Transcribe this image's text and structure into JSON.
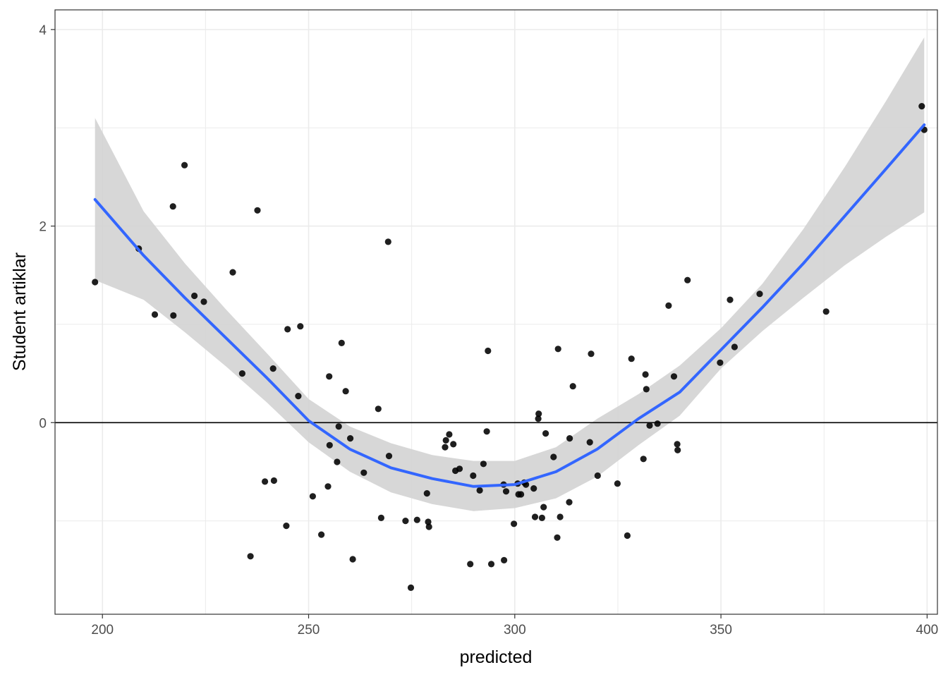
{
  "chart_data": {
    "type": "scatter",
    "title": "",
    "xlabel": "predicted",
    "ylabel": "Student artiklar",
    "xlim": [
      188.5,
      402.5
    ],
    "ylim": [
      -1.95,
      4.2
    ],
    "x_ticks": [
      200,
      250,
      300,
      350,
      400
    ],
    "y_ticks": [
      0,
      2,
      4
    ],
    "x_tick_labels": [
      "200",
      "250",
      "300",
      "350",
      "400"
    ],
    "y_tick_labels": [
      "0",
      "2",
      "4"
    ],
    "grid": true,
    "reference_line_y": 0,
    "colors": {
      "points": "#000000",
      "smooth_line": "#3366FF",
      "confidence_band": "#d3d3d3",
      "grid": "#ebebeb",
      "panel_border": "#333333",
      "reference_line": "#000000"
    },
    "points": [
      {
        "x": 198.2,
        "y": 1.43
      },
      {
        "x": 208.8,
        "y": 1.77
      },
      {
        "x": 212.7,
        "y": 1.1
      },
      {
        "x": 217.1,
        "y": 2.2
      },
      {
        "x": 217.2,
        "y": 1.09
      },
      {
        "x": 219.9,
        "y": 2.62
      },
      {
        "x": 222.3,
        "y": 1.29
      },
      {
        "x": 224.6,
        "y": 1.23
      },
      {
        "x": 231.6,
        "y": 1.53
      },
      {
        "x": 233.9,
        "y": 0.5
      },
      {
        "x": 235.9,
        "y": -1.36
      },
      {
        "x": 237.6,
        "y": 2.16
      },
      {
        "x": 239.4,
        "y": -0.6
      },
      {
        "x": 241.4,
        "y": 0.55
      },
      {
        "x": 241.6,
        "y": -0.59
      },
      {
        "x": 244.6,
        "y": -1.05
      },
      {
        "x": 244.9,
        "y": 0.95
      },
      {
        "x": 247.5,
        "y": 0.27
      },
      {
        "x": 248.0,
        "y": 0.98
      },
      {
        "x": 251.0,
        "y": -0.75
      },
      {
        "x": 253.1,
        "y": -1.14
      },
      {
        "x": 254.7,
        "y": -0.65
      },
      {
        "x": 255.0,
        "y": 0.47
      },
      {
        "x": 255.1,
        "y": -0.23
      },
      {
        "x": 256.9,
        "y": -0.4
      },
      {
        "x": 257.3,
        "y": -0.04
      },
      {
        "x": 258.0,
        "y": 0.81
      },
      {
        "x": 259.0,
        "y": 0.32
      },
      {
        "x": 260.1,
        "y": -0.16
      },
      {
        "x": 260.7,
        "y": -1.39
      },
      {
        "x": 263.4,
        "y": -0.51
      },
      {
        "x": 266.9,
        "y": 0.14
      },
      {
        "x": 267.6,
        "y": -0.97
      },
      {
        "x": 269.3,
        "y": 1.84
      },
      {
        "x": 269.5,
        "y": -0.34
      },
      {
        "x": 273.5,
        "y": -1.0
      },
      {
        "x": 274.8,
        "y": -1.68
      },
      {
        "x": 276.3,
        "y": -0.99
      },
      {
        "x": 278.7,
        "y": -0.72
      },
      {
        "x": 279.0,
        "y": -1.01
      },
      {
        "x": 279.2,
        "y": -1.06
      },
      {
        "x": 283.1,
        "y": -0.25
      },
      {
        "x": 283.3,
        "y": -0.18
      },
      {
        "x": 284.1,
        "y": -0.12
      },
      {
        "x": 285.1,
        "y": -0.22
      },
      {
        "x": 285.6,
        "y": -0.49
      },
      {
        "x": 286.6,
        "y": -0.47
      },
      {
        "x": 289.2,
        "y": -1.44
      },
      {
        "x": 289.9,
        "y": -0.54
      },
      {
        "x": 291.5,
        "y": -0.69
      },
      {
        "x": 292.4,
        "y": -0.42
      },
      {
        "x": 293.2,
        "y": -0.09
      },
      {
        "x": 293.5,
        "y": 0.73
      },
      {
        "x": 294.3,
        "y": -1.44
      },
      {
        "x": 297.3,
        "y": -0.63
      },
      {
        "x": 297.4,
        "y": -1.4
      },
      {
        "x": 297.9,
        "y": -0.7
      },
      {
        "x": 299.8,
        "y": -1.03
      },
      {
        "x": 300.7,
        "y": -0.62
      },
      {
        "x": 300.9,
        "y": -0.73
      },
      {
        "x": 301.5,
        "y": -0.73
      },
      {
        "x": 302.3,
        "y": -0.61
      },
      {
        "x": 302.7,
        "y": -0.63
      },
      {
        "x": 304.6,
        "y": -0.67
      },
      {
        "x": 304.9,
        "y": -0.96
      },
      {
        "x": 305.7,
        "y": 0.04
      },
      {
        "x": 305.8,
        "y": 0.09
      },
      {
        "x": 306.6,
        "y": -0.97
      },
      {
        "x": 307.0,
        "y": -0.86
      },
      {
        "x": 307.5,
        "y": -0.11
      },
      {
        "x": 309.4,
        "y": -0.35
      },
      {
        "x": 310.3,
        "y": -1.17
      },
      {
        "x": 310.5,
        "y": 0.75
      },
      {
        "x": 311.0,
        "y": -0.96
      },
      {
        "x": 313.2,
        "y": -0.81
      },
      {
        "x": 313.3,
        "y": -0.16
      },
      {
        "x": 314.1,
        "y": 0.37
      },
      {
        "x": 318.2,
        "y": -0.2
      },
      {
        "x": 318.5,
        "y": 0.7
      },
      {
        "x": 320.1,
        "y": -0.54
      },
      {
        "x": 324.9,
        "y": -0.62
      },
      {
        "x": 327.3,
        "y": -1.15
      },
      {
        "x": 328.3,
        "y": 0.65
      },
      {
        "x": 331.2,
        "y": -0.37
      },
      {
        "x": 331.7,
        "y": 0.49
      },
      {
        "x": 331.9,
        "y": 0.34
      },
      {
        "x": 332.7,
        "y": -0.03
      },
      {
        "x": 334.6,
        "y": -0.01
      },
      {
        "x": 337.3,
        "y": 1.19
      },
      {
        "x": 338.6,
        "y": 0.47
      },
      {
        "x": 339.4,
        "y": -0.22
      },
      {
        "x": 339.5,
        "y": -0.28
      },
      {
        "x": 341.9,
        "y": 1.45
      },
      {
        "x": 349.8,
        "y": 0.61
      },
      {
        "x": 352.2,
        "y": 1.25
      },
      {
        "x": 353.3,
        "y": 0.77
      },
      {
        "x": 359.4,
        "y": 1.31
      },
      {
        "x": 375.5,
        "y": 1.13
      },
      {
        "x": 398.7,
        "y": 3.22
      },
      {
        "x": 399.3,
        "y": 2.98
      }
    ],
    "smooth_line": {
      "x": [
        198.2,
        210,
        220,
        230,
        240,
        250,
        260,
        270,
        280,
        290,
        300,
        310,
        320,
        330,
        340,
        350,
        360,
        370,
        380,
        390,
        399.3
      ],
      "y": [
        2.27,
        1.7,
        1.27,
        0.86,
        0.45,
        0.02,
        -0.27,
        -0.46,
        -0.57,
        -0.65,
        -0.63,
        -0.5,
        -0.27,
        0.04,
        0.31,
        0.74,
        1.17,
        1.62,
        2.1,
        2.58,
        3.03
      ]
    },
    "confidence_band": {
      "x": [
        198.2,
        210,
        220,
        230,
        240,
        250,
        260,
        270,
        280,
        290,
        300,
        310,
        320,
        330,
        340,
        350,
        360,
        370,
        380,
        390,
        399.3
      ],
      "lower": [
        1.45,
        1.25,
        0.92,
        0.57,
        0.2,
        -0.2,
        -0.5,
        -0.71,
        -0.83,
        -0.9,
        -0.87,
        -0.77,
        -0.55,
        -0.23,
        0.07,
        0.55,
        0.93,
        1.27,
        1.6,
        1.89,
        2.14
      ],
      "upper": [
        3.1,
        2.15,
        1.62,
        1.15,
        0.7,
        0.24,
        -0.04,
        -0.21,
        -0.33,
        -0.39,
        -0.39,
        -0.25,
        0.04,
        0.29,
        0.58,
        0.96,
        1.41,
        1.97,
        2.6,
        3.27,
        3.92
      ]
    }
  }
}
